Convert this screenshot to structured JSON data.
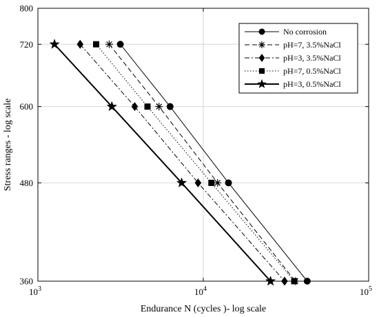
{
  "chart_data": {
    "type": "line",
    "title": "",
    "xlabel": "Endurance N (cycles )- log scale",
    "ylabel": "Stress ranges - log scale",
    "x_scale": "log",
    "y_scale": "log",
    "xlim": [
      1000,
      100000
    ],
    "ylim": [
      360,
      800
    ],
    "x_ticks": [
      1000,
      10000,
      100000
    ],
    "x_tick_labels": [
      {
        "base": "10",
        "exp": "3"
      },
      {
        "base": "10",
        "exp": "4"
      },
      {
        "base": "10",
        "exp": "5"
      }
    ],
    "y_ticks": [
      360,
      480,
      600,
      720,
      800
    ],
    "y_tick_labels": [
      "360",
      "480",
      "600",
      "720",
      "800"
    ],
    "grid": true,
    "legend_position": "top-right",
    "series": [
      {
        "name": "No corrosion",
        "marker": "circle",
        "line_style": "solid",
        "line_width": 1,
        "points": [
          [
            3150,
            720
          ],
          [
            6300,
            600
          ],
          [
            14200,
            480
          ],
          [
            42500,
            360
          ]
        ]
      },
      {
        "name": "pH=7, 3.5%NaCl",
        "marker": "asterisk",
        "line_style": "dashed",
        "line_width": 1,
        "points": [
          [
            2700,
            720
          ],
          [
            5400,
            600
          ],
          [
            12200,
            480
          ],
          [
            36000,
            360
          ]
        ]
      },
      {
        "name": "pH=3, 3.5%NaCl",
        "marker": "diamond",
        "line_style": "dashdot",
        "line_width": 1,
        "points": [
          [
            1800,
            720
          ],
          [
            3850,
            600
          ],
          [
            9300,
            480
          ],
          [
            31000,
            360
          ]
        ]
      },
      {
        "name": "pH=7, 0.5%NaCl",
        "marker": "square",
        "line_style": "dotted",
        "line_width": 1,
        "points": [
          [
            2250,
            720
          ],
          [
            4600,
            600
          ],
          [
            11200,
            480
          ],
          [
            35500,
            360
          ]
        ]
      },
      {
        "name": "pH=3, 0.5%NaCl",
        "marker": "star",
        "line_style": "solid",
        "line_width": 2,
        "points": [
          [
            1260,
            720
          ],
          [
            2800,
            600
          ],
          [
            7400,
            480
          ],
          [
            25500,
            360
          ]
        ]
      }
    ]
  }
}
